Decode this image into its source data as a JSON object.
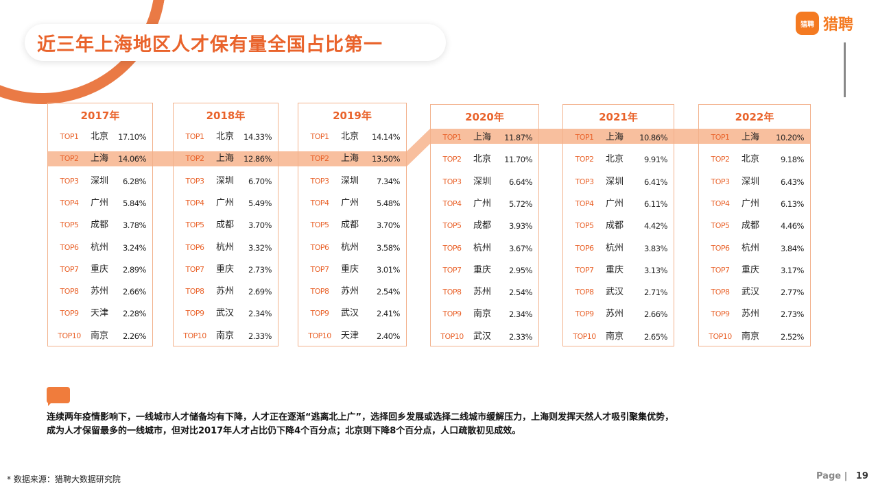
{
  "title": "近三年上海地区人才保有量全国占比第一",
  "logo": {
    "badge": "猎聘",
    "text": "猎聘"
  },
  "years": [
    {
      "year": "2017年",
      "rows": [
        {
          "rank": "TOP1",
          "city": "北京",
          "pct": "17.10%"
        },
        {
          "rank": "TOP2",
          "city": "上海",
          "pct": "14.06%"
        },
        {
          "rank": "TOP3",
          "city": "深圳",
          "pct": "6.28%"
        },
        {
          "rank": "TOP4",
          "city": "广州",
          "pct": "5.84%"
        },
        {
          "rank": "TOP5",
          "city": "成都",
          "pct": "3.78%"
        },
        {
          "rank": "TOP6",
          "city": "杭州",
          "pct": "3.24%"
        },
        {
          "rank": "TOP7",
          "city": "重庆",
          "pct": "2.89%"
        },
        {
          "rank": "TOP8",
          "city": "苏州",
          "pct": "2.66%"
        },
        {
          "rank": "TOP9",
          "city": "天津",
          "pct": "2.28%"
        },
        {
          "rank": "TOP10",
          "city": "南京",
          "pct": "2.26%"
        }
      ]
    },
    {
      "year": "2018年",
      "rows": [
        {
          "rank": "TOP1",
          "city": "北京",
          "pct": "14.33%"
        },
        {
          "rank": "TOP2",
          "city": "上海",
          "pct": "12.86%"
        },
        {
          "rank": "TOP3",
          "city": "深圳",
          "pct": "6.70%"
        },
        {
          "rank": "TOP4",
          "city": "广州",
          "pct": "5.49%"
        },
        {
          "rank": "TOP5",
          "city": "成都",
          "pct": "3.70%"
        },
        {
          "rank": "TOP6",
          "city": "杭州",
          "pct": "3.32%"
        },
        {
          "rank": "TOP7",
          "city": "重庆",
          "pct": "2.73%"
        },
        {
          "rank": "TOP8",
          "city": "苏州",
          "pct": "2.69%"
        },
        {
          "rank": "TOP9",
          "city": "武汉",
          "pct": "2.34%"
        },
        {
          "rank": "TOP10",
          "city": "南京",
          "pct": "2.33%"
        }
      ]
    },
    {
      "year": "2019年",
      "rows": [
        {
          "rank": "TOP1",
          "city": "北京",
          "pct": "14.14%"
        },
        {
          "rank": "TOP2",
          "city": "上海",
          "pct": "13.50%"
        },
        {
          "rank": "TOP3",
          "city": "深圳",
          "pct": "7.34%"
        },
        {
          "rank": "TOP4",
          "city": "广州",
          "pct": "5.48%"
        },
        {
          "rank": "TOP5",
          "city": "成都",
          "pct": "3.70%"
        },
        {
          "rank": "TOP6",
          "city": "杭州",
          "pct": "3.58%"
        },
        {
          "rank": "TOP7",
          "city": "重庆",
          "pct": "3.01%"
        },
        {
          "rank": "TOP8",
          "city": "苏州",
          "pct": "2.54%"
        },
        {
          "rank": "TOP9",
          "city": "武汉",
          "pct": "2.41%"
        },
        {
          "rank": "TOP10",
          "city": "天津",
          "pct": "2.40%"
        }
      ]
    },
    {
      "year": "2020年",
      "rows": [
        {
          "rank": "TOP1",
          "city": "上海",
          "pct": "11.87%"
        },
        {
          "rank": "TOP2",
          "city": "北京",
          "pct": "11.70%"
        },
        {
          "rank": "TOP3",
          "city": "深圳",
          "pct": "6.64%"
        },
        {
          "rank": "TOP4",
          "city": "广州",
          "pct": "5.72%"
        },
        {
          "rank": "TOP5",
          "city": "成都",
          "pct": "3.93%"
        },
        {
          "rank": "TOP6",
          "city": "杭州",
          "pct": "3.67%"
        },
        {
          "rank": "TOP7",
          "city": "重庆",
          "pct": "2.95%"
        },
        {
          "rank": "TOP8",
          "city": "苏州",
          "pct": "2.54%"
        },
        {
          "rank": "TOP9",
          "city": "南京",
          "pct": "2.34%"
        },
        {
          "rank": "TOP10",
          "city": "武汉",
          "pct": "2.33%"
        }
      ]
    },
    {
      "year": "2021年",
      "rows": [
        {
          "rank": "TOP1",
          "city": "上海",
          "pct": "10.86%"
        },
        {
          "rank": "TOP2",
          "city": "北京",
          "pct": "9.91%"
        },
        {
          "rank": "TOP3",
          "city": "深圳",
          "pct": "6.41%"
        },
        {
          "rank": "TOP4",
          "city": "广州",
          "pct": "6.11%"
        },
        {
          "rank": "TOP5",
          "city": "成都",
          "pct": "4.42%"
        },
        {
          "rank": "TOP6",
          "city": "杭州",
          "pct": "3.83%"
        },
        {
          "rank": "TOP7",
          "city": "重庆",
          "pct": "3.13%"
        },
        {
          "rank": "TOP8",
          "city": "武汉",
          "pct": "2.71%"
        },
        {
          "rank": "TOP9",
          "city": "苏州",
          "pct": "2.66%"
        },
        {
          "rank": "TOP10",
          "city": "南京",
          "pct": "2.65%"
        }
      ]
    },
    {
      "year": "2022年",
      "rows": [
        {
          "rank": "TOP1",
          "city": "上海",
          "pct": "10.20%"
        },
        {
          "rank": "TOP2",
          "city": "北京",
          "pct": "9.18%"
        },
        {
          "rank": "TOP3",
          "city": "深圳",
          "pct": "6.43%"
        },
        {
          "rank": "TOP4",
          "city": "广州",
          "pct": "6.13%"
        },
        {
          "rank": "TOP5",
          "city": "成都",
          "pct": "4.46%"
        },
        {
          "rank": "TOP6",
          "city": "杭州",
          "pct": "3.84%"
        },
        {
          "rank": "TOP7",
          "city": "重庆",
          "pct": "3.17%"
        },
        {
          "rank": "TOP8",
          "city": "武汉",
          "pct": "2.77%"
        },
        {
          "rank": "TOP9",
          "city": "苏州",
          "pct": "2.73%"
        },
        {
          "rank": "TOP10",
          "city": "南京",
          "pct": "2.52%"
        }
      ]
    }
  ],
  "summary_line1": "连续两年疫情影响下，一线城市人才储备均有下降，人才正在逐渐“逃离北上广”，选择回乡发展或选择二线城市缓解压力，上海则发挥天然人才吸引聚集优势，",
  "summary_line2": "成为人才保留最多的一线城市，但对比2017年人才占比仍下降4个百分点；北京则下降8个百分点，人口疏散初见成效。",
  "source": "* 数据来源：猎聘大数据研究院",
  "page_label": "Page |",
  "page_number": "19",
  "colors": {
    "accent": "#e9632b",
    "highlight_band": "#f8bf9e"
  }
}
